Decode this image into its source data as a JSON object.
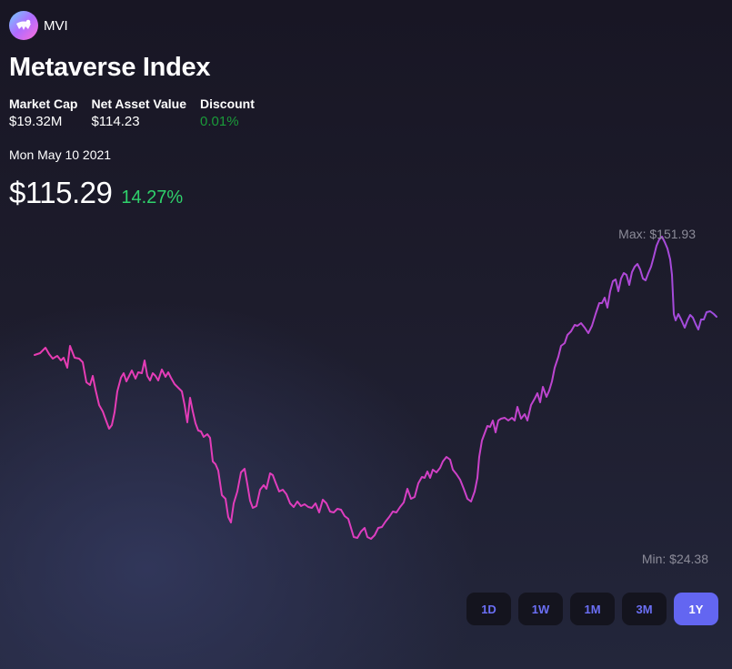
{
  "token": {
    "symbol": "MVI",
    "logo_icon": "metaverse-index-logo-icon"
  },
  "header": {
    "title": "Metaverse Index"
  },
  "stats": [
    {
      "label": "Market Cap",
      "value": "$19.32M"
    },
    {
      "label": "Net Asset Value",
      "value": "$114.23"
    },
    {
      "label": "Discount",
      "value": "0.01%",
      "color": "#1a9a3a"
    }
  ],
  "selected": {
    "date": "Mon May 10 2021",
    "price": "$115.29",
    "change": "14.27%",
    "change_color": "#2fd16b"
  },
  "chart": {
    "max_label": "Max: $151.93",
    "min_label": "Min: $24.38",
    "line_gradient": [
      "#e83cb0",
      "#9b4de0"
    ]
  },
  "range_buttons": [
    {
      "label": "1D",
      "active": false
    },
    {
      "label": "1W",
      "active": false
    },
    {
      "label": "1M",
      "active": false
    },
    {
      "label": "3M",
      "active": false
    },
    {
      "label": "1Y",
      "active": true
    }
  ],
  "colors": {
    "accent": "#6366f1",
    "button_bg": "#14141e",
    "button_text": "#6b6ff5",
    "muted_text": "#8b8b98"
  }
}
